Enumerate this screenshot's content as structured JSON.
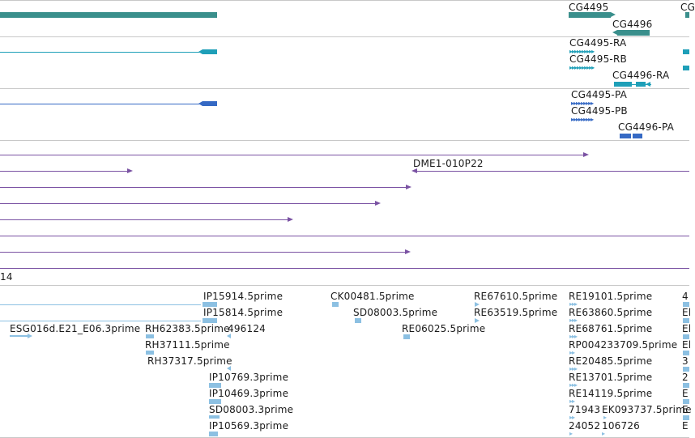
{
  "colors": {
    "gene": "#3a8f8c",
    "mrna": "#1e9fb8",
    "protein": "#3569c4",
    "clone": "#7a52a3",
    "est": "#8cc0e2",
    "divider": "#c8c8c8"
  },
  "tracks": {
    "genes": {
      "labels": [
        "CG4495",
        "CG4496",
        "CG"
      ]
    },
    "transcripts": {
      "labels": [
        "CG4495-RA",
        "CG4495-RB",
        "CG4496-RA"
      ]
    },
    "proteins": {
      "labels": [
        "CG4495-PA",
        "CG4495-PB",
        "CG4496-PA"
      ]
    },
    "clones": {
      "labels": [
        "DME1-010P22",
        "14"
      ]
    },
    "ests": {
      "labels": [
        "IP15914.5prime",
        "IP15814.5prime",
        "ESG016d.E21_E06.3prime",
        "RH62383.5prime",
        "496124",
        "RH37111.5prime",
        "RH37317.5prime",
        "IP10769.3prime",
        "IP10469.3prime",
        "SD08003.3prime",
        "IP10569.3prime",
        "CK00481.5prime",
        "SD08003.5prime",
        "RE06025.5prime",
        "RE67610.5prime",
        "RE63519.5prime",
        "RE19101.5prime",
        "RE63860.5prime",
        "RE68761.5prime",
        "RP004233709.5prime",
        "RE20485.5prime",
        "RE13701.5prime",
        "RE14119.5prime",
        "71943",
        "EK093737.5prime",
        "24052",
        "106726",
        "4",
        "El",
        "El",
        "El",
        "3",
        "2",
        "E",
        "E",
        "E"
      ]
    }
  }
}
